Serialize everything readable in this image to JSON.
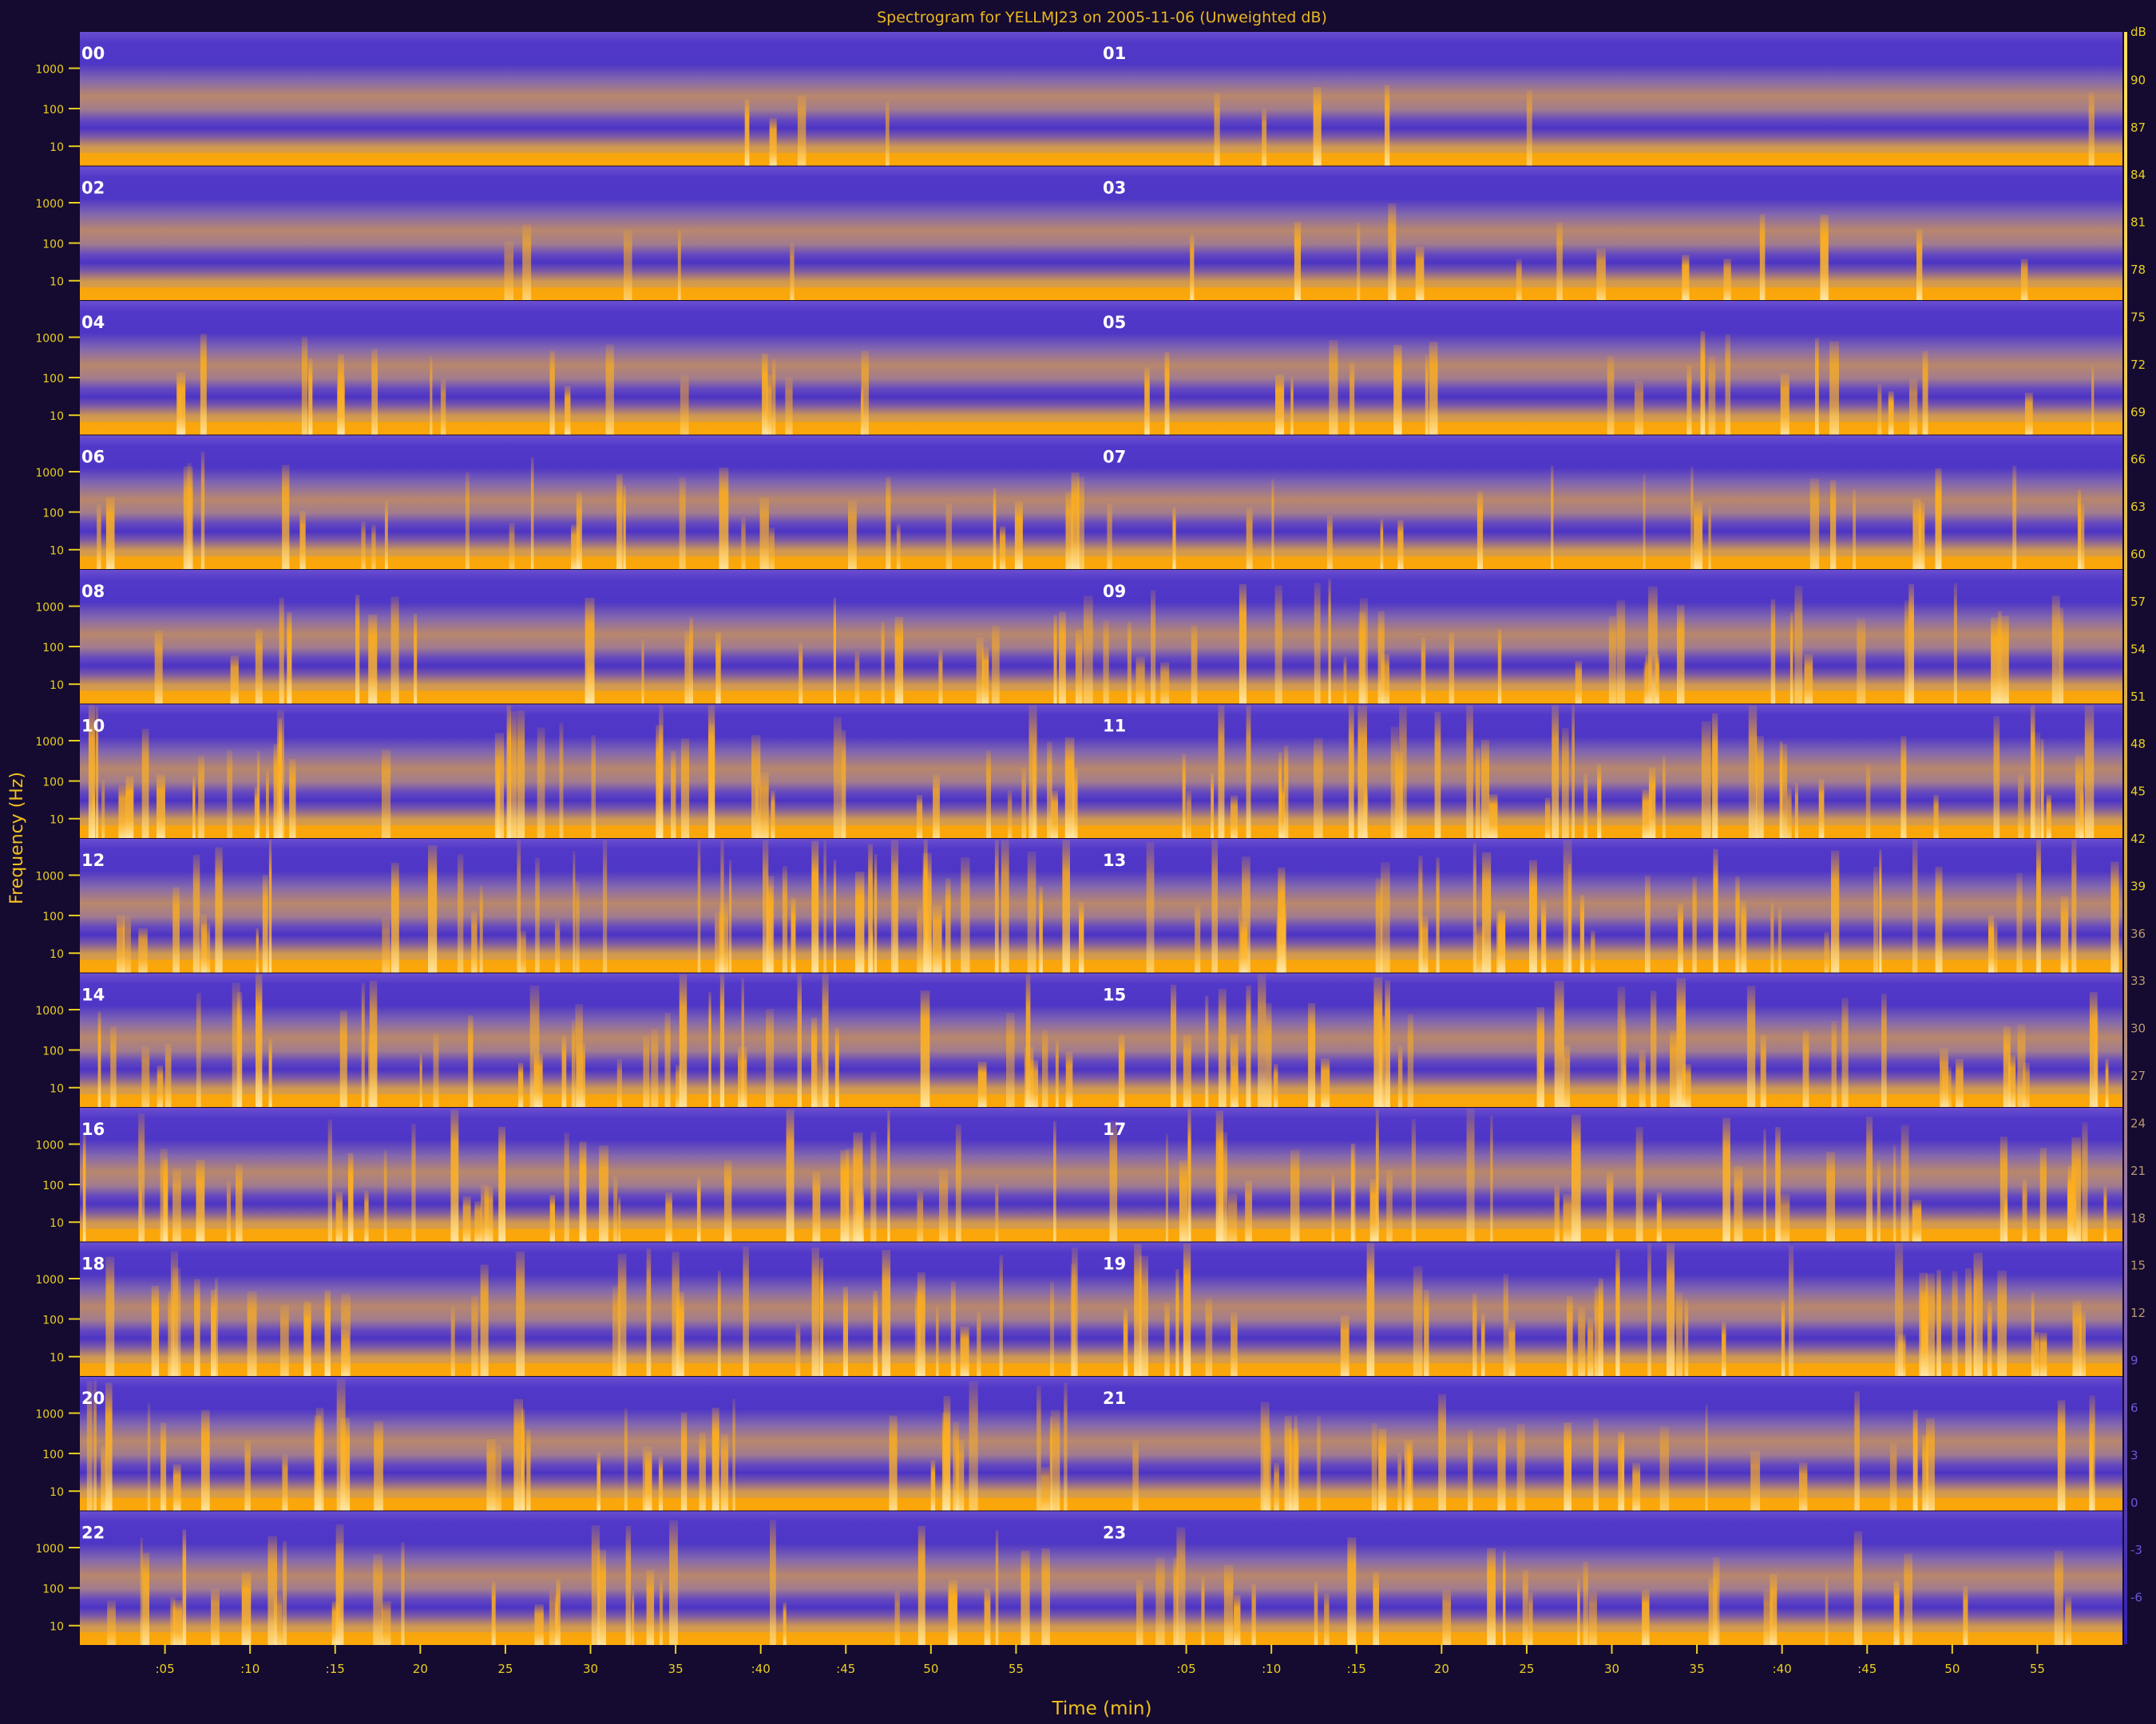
{
  "chart_data": {
    "type": "heatmap",
    "title": "Spectrogram for YELLMJ23 on 2005-11-06 (Unweighted dB)",
    "xlabel": "Time (min)",
    "ylabel": "Frequency (Hz)",
    "hour_labels": [
      "00",
      "01",
      "02",
      "03",
      "04",
      "05",
      "06",
      "07",
      "08",
      "09",
      "10",
      "11",
      "12",
      "13",
      "14",
      "15",
      "16",
      "17",
      "18",
      "19",
      "20",
      "21",
      "22",
      "23"
    ],
    "y_tick_labels": [
      "1000",
      "100",
      "10"
    ],
    "x_tick_labels": [
      ":05",
      ":10",
      ":15",
      "20",
      "25",
      "30",
      "35",
      ":40",
      ":45",
      "50",
      "55"
    ],
    "colorbar_unit": "dB",
    "colorbar_ticks": [
      90,
      87,
      84,
      81,
      78,
      75,
      72,
      69,
      66,
      63,
      60,
      57,
      54,
      51,
      48,
      45,
      42,
      39,
      36,
      33,
      30,
      27,
      24,
      21,
      18,
      15,
      12,
      9,
      6,
      3,
      0,
      -3,
      -6
    ],
    "colorbar_range": [
      -9,
      93
    ],
    "activity_level_by_hour": [
      0.05,
      0.08,
      0.07,
      0.22,
      0.28,
      0.34,
      0.45,
      0.32,
      0.4,
      0.55,
      0.72,
      0.74,
      0.82,
      0.7,
      0.72,
      0.66,
      0.62,
      0.64,
      0.58,
      0.66,
      0.6,
      0.48,
      0.55,
      0.45
    ],
    "colors": {
      "low": "#5a3ccc",
      "mid": "#c08a78",
      "high": "#ffa800",
      "peak": "#ffe6a0",
      "background": "#150a30",
      "text": "#e8d020"
    }
  }
}
